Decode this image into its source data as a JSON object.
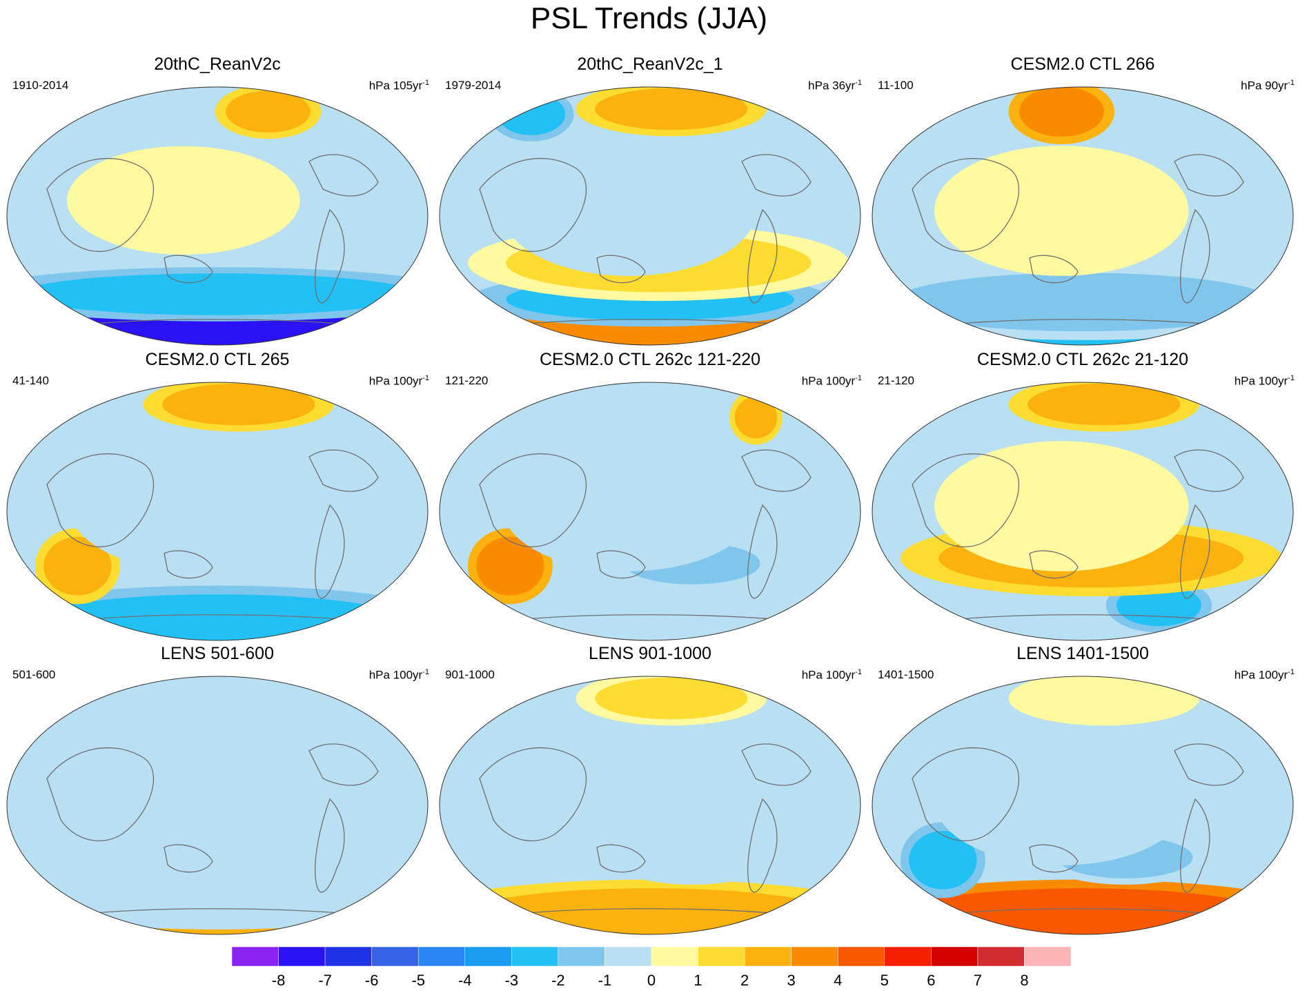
{
  "page_title": "PSL Trends (JJA)",
  "chart_data": {
    "type": "heatmap",
    "projection": "global map (Pacific-centered)",
    "variable": "PSL (sea level pressure) trend",
    "season": "JJA",
    "panels": [
      {
        "title": "20thC_ReanV2c",
        "period": "1910-2014",
        "unit_text": "hPa 105yr",
        "unit_exp": "-1",
        "features": [
          {
            "region": "Antarctica / Southern Ocean",
            "trend_hPa": -7.5
          },
          {
            "region": "Southern mid-latitude belt",
            "trend_hPa": -3
          },
          {
            "region": "Tropics / NH subtropics",
            "trend_hPa": -1
          },
          {
            "region": "Central Pacific / subtropics",
            "trend_hPa": 0.5
          },
          {
            "region": "Arctic / Greenland",
            "trend_hPa": 2
          }
        ]
      },
      {
        "title": "20thC_ReanV2c_1",
        "period": "1979-2014",
        "unit_text": "hPa 36yr",
        "unit_exp": "-1",
        "features": [
          {
            "region": "Antarctica coast",
            "trend_hPa": 3
          },
          {
            "region": "Southern Ocean belt",
            "trend_hPa": -3
          },
          {
            "region": "Southern mid-latitudes",
            "trend_hPa": 1.5
          },
          {
            "region": "Tropics",
            "trend_hPa": -1
          },
          {
            "region": "Siberia / North Pacific",
            "trend_hPa": -3
          },
          {
            "region": "Arctic",
            "trend_hPa": 2
          }
        ]
      },
      {
        "title": "CESM2.0 CTL 266",
        "period": "11-100",
        "unit_text": "hPa 90yr",
        "unit_exp": "-1",
        "features": [
          {
            "region": "Antarctica",
            "trend_hPa": -3
          },
          {
            "region": "Southern Ocean",
            "trend_hPa": -2
          },
          {
            "region": "Tropics",
            "trend_hPa": 0.5
          },
          {
            "region": "Arctic / Siberia",
            "trend_hPa": 3
          }
        ]
      },
      {
        "title": "CESM2.0 CTL 265",
        "period": "41-140",
        "unit_text": "hPa 100yr",
        "unit_exp": "-1",
        "features": [
          {
            "region": "Antarctica",
            "trend_hPa": -3
          },
          {
            "region": "South Indian Ocean",
            "trend_hPa": 2.5
          },
          {
            "region": "Tropics",
            "trend_hPa": -0.5
          },
          {
            "region": "Arctic",
            "trend_hPa": 2
          }
        ]
      },
      {
        "title": "CESM2.0 CTL 262c 121-220",
        "period": "121-220",
        "unit_text": "hPa 100yr",
        "unit_exp": "-1",
        "features": [
          {
            "region": "South Indian Ocean",
            "trend_hPa": 3
          },
          {
            "region": "South Pacific",
            "trend_hPa": -1.5
          },
          {
            "region": "Tropics",
            "trend_hPa": -0.5
          },
          {
            "region": "Greenland",
            "trend_hPa": 2
          }
        ]
      },
      {
        "title": "CESM2.0 CTL 262c 21-120",
        "period": "21-120",
        "unit_text": "hPa 100yr",
        "unit_exp": "-1",
        "features": [
          {
            "region": "Southern Ocean (Australia sector)",
            "trend_hPa": -3
          },
          {
            "region": "South Pacific / Antarctica",
            "trend_hPa": -3
          },
          {
            "region": "Southern mid-latitudes",
            "trend_hPa": 2
          },
          {
            "region": "Tropics",
            "trend_hPa": 0.5
          },
          {
            "region": "Arctic",
            "trend_hPa": 2
          }
        ]
      },
      {
        "title": "LENS 501-600",
        "period": "501-600",
        "unit_text": "hPa 100yr",
        "unit_exp": "-1",
        "features": [
          {
            "region": "Antarctica",
            "trend_hPa": 2.5
          },
          {
            "region": "Southern Ocean",
            "trend_hPa": -1
          },
          {
            "region": "Tropics",
            "trend_hPa": -0.5
          },
          {
            "region": "Arctic",
            "trend_hPa": -1
          }
        ]
      },
      {
        "title": "LENS 901-1000",
        "period": "901-1000",
        "unit_text": "hPa 100yr",
        "unit_exp": "-1",
        "features": [
          {
            "region": "Antarctica",
            "trend_hPa": 2.5
          },
          {
            "region": "South Pacific",
            "trend_hPa": -0.5
          },
          {
            "region": "Tropics",
            "trend_hPa": -0.5
          },
          {
            "region": "Arctic",
            "trend_hPa": 1
          }
        ]
      },
      {
        "title": "LENS 1401-1500",
        "period": "1401-1500",
        "unit_text": "hPa 100yr",
        "unit_exp": "-1",
        "features": [
          {
            "region": "Antarctica",
            "trend_hPa": 4
          },
          {
            "region": "South Indian Ocean",
            "trend_hPa": -3
          },
          {
            "region": "South Pacific",
            "trend_hPa": -2
          },
          {
            "region": "Tropics",
            "trend_hPa": -0.5
          },
          {
            "region": "Arctic",
            "trend_hPa": 0.5
          }
        ]
      }
    ],
    "colorbar": {
      "labels": [
        "-8",
        "-7",
        "-6",
        "-5",
        "-4",
        "-3",
        "-2",
        "-1",
        "0",
        "1",
        "2",
        "3",
        "4",
        "5",
        "6",
        "7",
        "8"
      ],
      "levels": [
        -8,
        -7,
        -6,
        -5,
        -4,
        -3,
        -2,
        -1,
        0,
        1,
        2,
        3,
        4,
        5,
        6,
        7,
        8
      ],
      "colors": [
        "#8a22f0",
        "#2a12f5",
        "#2032e6",
        "#3662e8",
        "#2a86f5",
        "#1a9cf0",
        "#22c0f5",
        "#80c6ec",
        "#b8dff2",
        "#fff9a0",
        "#fcdc30",
        "#fbb10e",
        "#f98b00",
        "#f85800",
        "#f51e00",
        "#d60000",
        "#d22c30",
        "#fcb4b6"
      ]
    }
  },
  "palette": {
    "background": "#ffffff",
    "coast": "#6f6f6f"
  }
}
